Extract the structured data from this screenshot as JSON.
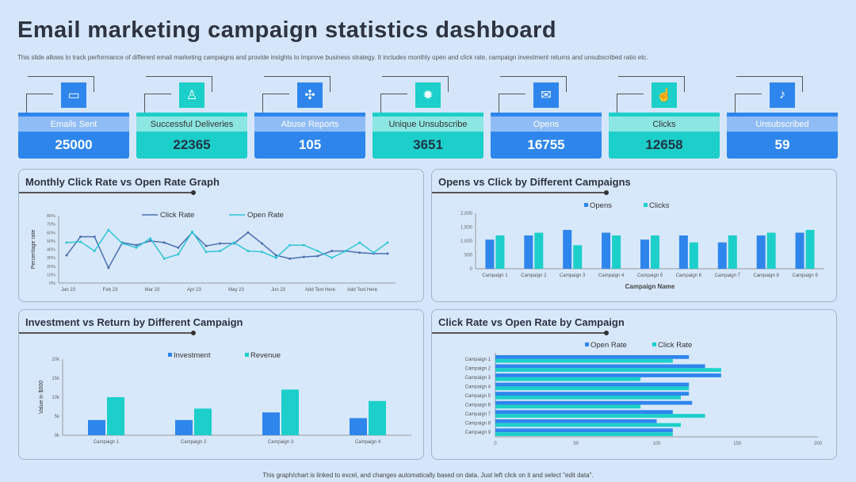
{
  "title": "Email marketing campaign statistics dashboard",
  "subtitle": "This slide allows to track performance of different email marketing campaigns and provide insights to improve business strategy. It includes monthly open and click rate, campaign investment returns and unsubscribed ratio etc.",
  "kpis": [
    {
      "label": "Emails Sent",
      "value": "25000",
      "icon": "folder-icon",
      "style": "blue",
      "glyph": "▭"
    },
    {
      "label": "Successful Deliveries",
      "value": "22365",
      "icon": "person-icon",
      "style": "teal",
      "glyph": "♙"
    },
    {
      "label": "Abuse Reports",
      "value": "105",
      "icon": "connections-icon",
      "style": "blue",
      "glyph": "✣"
    },
    {
      "label": "Unique Unsubscribe",
      "value": "3651",
      "icon": "bug-icon",
      "style": "teal",
      "glyph": "✹"
    },
    {
      "label": "Opens",
      "value": "16755",
      "icon": "envelope-open-icon",
      "style": "blue",
      "glyph": "✉"
    },
    {
      "label": "Clicks",
      "value": "12658",
      "icon": "pointer-hand-icon",
      "style": "teal",
      "glyph": "☝"
    },
    {
      "label": "Unsubscribed",
      "value": "59",
      "icon": "bell-icon",
      "style": "blue",
      "glyph": "♪"
    }
  ],
  "footer": "This graph/chart is linked to excel, and changes automatically based on data. Just left click on it and select \"edit data\".",
  "colors": {
    "blue": "#2e86ec",
    "teal": "#1ccfca",
    "line1": "#4a6fb0",
    "line2": "#2ec6d6"
  },
  "chart_data": [
    {
      "type": "line",
      "title": "Monthly Click Rate vs Open Rate Graph",
      "ylabel": "Percentage rate",
      "ylim": [
        0,
        80
      ],
      "yticks": [
        "0%",
        "10%",
        "20%",
        "30%",
        "40%",
        "50%",
        "60%",
        "70%",
        "80%"
      ],
      "xlabels": [
        "Jan 23",
        "Feb 23",
        "Mar 23",
        "Apr 23",
        "May 23",
        "Jun 23",
        "Add Text Here",
        "Add Text Here"
      ],
      "series": [
        {
          "name": "Click Rate",
          "values": [
            33,
            55,
            55,
            18,
            48,
            45,
            50,
            48,
            42,
            60,
            44,
            47,
            47,
            60,
            47,
            33,
            29,
            31,
            32,
            38,
            38,
            36,
            35,
            35
          ]
        },
        {
          "name": "Open Rate",
          "values": [
            48,
            49,
            38,
            63,
            47,
            42,
            53,
            29,
            34,
            61,
            37,
            38,
            48,
            38,
            37,
            30,
            45,
            45,
            38,
            30,
            38,
            48,
            36,
            48
          ]
        }
      ]
    },
    {
      "type": "bar",
      "title": "Opens vs Click by Different Campaigns",
      "xlabel": "Campaign Name",
      "ylim": [
        0,
        2000
      ],
      "yticks": [
        "0",
        "500",
        "1,000",
        "1,500",
        "2,000"
      ],
      "categories": [
        "Campaign 1",
        "Campaign 2",
        "Campaign 3",
        "Campaign 4",
        "Campaign 5",
        "Campaign 6",
        "Campaign 7",
        "Campaign 8",
        "Campaign 9"
      ],
      "series": [
        {
          "name": "Opens",
          "values": [
            1050,
            1200,
            1400,
            1300,
            1050,
            1200,
            950,
            1200,
            1300
          ]
        },
        {
          "name": "Clicks",
          "values": [
            1200,
            1300,
            850,
            1200,
            1200,
            950,
            1200,
            1300,
            1400
          ]
        }
      ]
    },
    {
      "type": "bar",
      "title": "Investment vs Return by Different  Campaign",
      "ylabel": "Value in $000",
      "ylim": [
        0,
        20000
      ],
      "yticks": [
        "0k",
        "5k",
        "10k",
        "15k",
        "20k"
      ],
      "categories": [
        "Campaign 1",
        "Campaign 2",
        "Campaign 3",
        "Campaign 4"
      ],
      "series": [
        {
          "name": "Investment",
          "values": [
            4000,
            4000,
            6000,
            4500
          ]
        },
        {
          "name": "Revenue",
          "values": [
            10000,
            7000,
            12000,
            9000
          ]
        }
      ]
    },
    {
      "type": "bar",
      "orientation": "horizontal",
      "title": "Click Rate vs Open Rate by Campaign",
      "xlim": [
        0,
        200
      ],
      "xticks": [
        "0",
        "50",
        "100",
        "150",
        "200"
      ],
      "categories": [
        "Campaign 1",
        "Campaign 2",
        "Campaign 3",
        "Campaign 4",
        "Campaign 5",
        "Campaign 6",
        "Campaign 7",
        "Campaign 8",
        "Campaign 9"
      ],
      "series": [
        {
          "name": "Open Rate",
          "values": [
            120,
            130,
            140,
            120,
            120,
            122,
            110,
            100,
            110
          ]
        },
        {
          "name": "Click Rate",
          "values": [
            110,
            140,
            90,
            120,
            115,
            90,
            130,
            115,
            110
          ]
        }
      ]
    }
  ]
}
